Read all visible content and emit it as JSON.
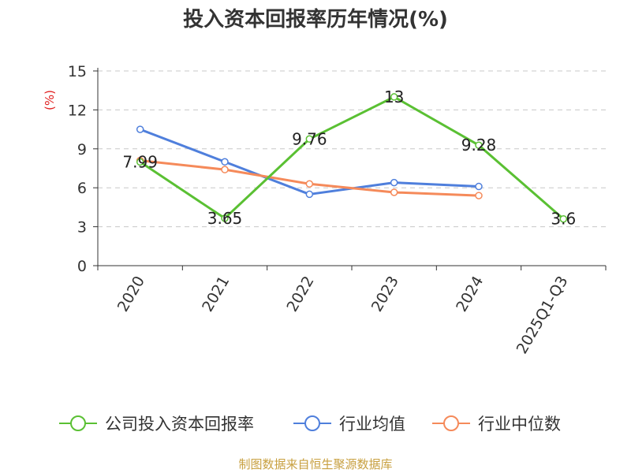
{
  "title": "投入资本回报率历年情况(%)",
  "footer": "制图数据来自恒生聚源数据库",
  "chart_data": {
    "type": "line",
    "title": "投入资本回报率历年情况(%)",
    "ylabel": "(%)",
    "ylim": [
      0,
      15
    ],
    "yticks": [
      0,
      3,
      6,
      9,
      12,
      15
    ],
    "grid": true,
    "legend_position": "bottom",
    "categories": [
      "2020",
      "2021",
      "2022",
      "2023",
      "2024",
      "2025Q1-Q3"
    ],
    "series": [
      {
        "name": "公司投入资本回报率",
        "color": "#5ac033",
        "values": [
          7.99,
          3.65,
          9.76,
          13,
          9.28,
          3.6
        ],
        "labels": [
          "7.99",
          "3.65",
          "9.76",
          "13",
          "9.28",
          "3.6"
        ]
      },
      {
        "name": "行业均值",
        "color": "#4f7fdc",
        "values": [
          10.5,
          8.0,
          5.5,
          6.4,
          6.1,
          null
        ]
      },
      {
        "name": "行业中位数",
        "color": "#f58a5a",
        "values": [
          8.1,
          7.4,
          6.3,
          5.65,
          5.4,
          null
        ]
      }
    ]
  }
}
